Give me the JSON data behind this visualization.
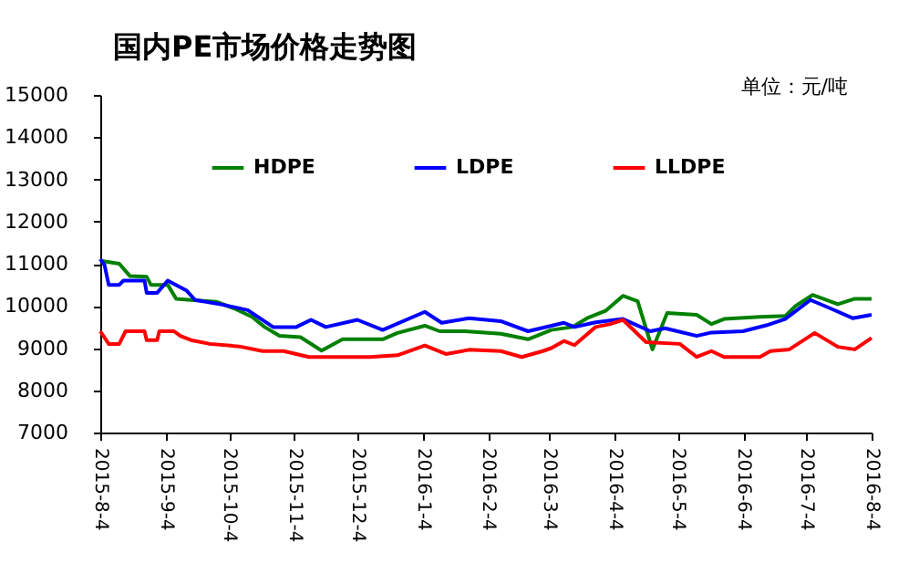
{
  "chart_data": {
    "type": "line",
    "title": "国内PE市场价格走势图",
    "annotations": [
      "单位：元/吨"
    ],
    "xlim": [
      "2015-08-04",
      "2016-08-04"
    ],
    "xticks": [
      {
        "value": "2015-08-04",
        "label": "2015-8-4"
      },
      {
        "value": "2015-09-04",
        "label": "2015-9-4"
      },
      {
        "value": "2015-10-04",
        "label": "2015-10-4"
      },
      {
        "value": "2015-11-04",
        "label": "2015-11-4"
      },
      {
        "value": "2015-12-04",
        "label": "2015-12-4"
      },
      {
        "value": "2016-01-04",
        "label": "2016-1-4"
      },
      {
        "value": "2016-02-04",
        "label": "2016-2-4"
      },
      {
        "value": "2016-03-04",
        "label": "2016-3-4"
      },
      {
        "value": "2016-04-04",
        "label": "2016-4-4"
      },
      {
        "value": "2016-05-04",
        "label": "2016-5-4"
      },
      {
        "value": "2016-06-04",
        "label": "2016-6-4"
      },
      {
        "value": "2016-07-04",
        "label": "2016-7-4"
      },
      {
        "value": "2016-08-04",
        "label": "2016-8-4"
      }
    ],
    "ylim": [
      7000,
      15000
    ],
    "yticks": [
      7000,
      8000,
      9000,
      10000,
      11000,
      12000,
      13000,
      14000,
      15000
    ],
    "grid": false,
    "legend": "top",
    "marker": "none",
    "line_style": "solid",
    "series": [
      {
        "name": "HDPE",
        "color": "#008000",
        "x": [
          "2015-08-04",
          "2015-08-13",
          "2015-08-18",
          "2015-08-26",
          "2015-08-28",
          "2015-09-05",
          "2015-09-09",
          "2015-09-16",
          "2015-09-28",
          "2015-10-07",
          "2015-10-15",
          "2015-10-21",
          "2015-10-28",
          "2015-11-07",
          "2015-11-17",
          "2015-11-27",
          "2015-12-16",
          "2015-12-23",
          "2016-01-05",
          "2016-01-12",
          "2016-01-24",
          "2016-02-10",
          "2016-02-23",
          "2016-03-05",
          "2016-03-15",
          "2016-03-22",
          "2016-03-31",
          "2016-04-08",
          "2016-04-15",
          "2016-04-22",
          "2016-04-29",
          "2016-05-13",
          "2016-05-20",
          "2016-05-26",
          "2016-06-12",
          "2016-06-24",
          "2016-06-29",
          "2016-07-07",
          "2016-07-19",
          "2016-07-27",
          "2016-08-04"
        ],
        "values": [
          11070,
          11000,
          10710,
          10690,
          10500,
          10500,
          10170,
          10140,
          10100,
          9930,
          9740,
          9500,
          9290,
          9260,
          8940,
          9210,
          9210,
          9360,
          9530,
          9400,
          9400,
          9340,
          9210,
          9430,
          9500,
          9710,
          9890,
          10240,
          10110,
          8970,
          9830,
          9790,
          9570,
          9690,
          9740,
          9760,
          10000,
          10260,
          10040,
          10170,
          10170
        ]
      },
      {
        "name": "LDPE",
        "color": "#0000ff",
        "x": [
          "2015-08-04",
          "2015-08-06",
          "2015-08-08",
          "2015-08-13",
          "2015-08-15",
          "2015-08-25",
          "2015-08-26",
          "2015-08-31",
          "2015-09-05",
          "2015-09-14",
          "2015-09-18",
          "2015-10-01",
          "2015-10-13",
          "2015-10-25",
          "2015-11-05",
          "2015-11-12",
          "2015-11-19",
          "2015-12-04",
          "2015-12-16",
          "2016-01-05",
          "2016-01-13",
          "2016-01-26",
          "2016-02-10",
          "2016-02-23",
          "2016-03-11",
          "2016-03-16",
          "2016-03-26",
          "2016-04-08",
          "2016-04-21",
          "2016-04-28",
          "2016-05-13",
          "2016-05-20",
          "2016-06-04",
          "2016-06-15",
          "2016-06-24",
          "2016-07-06",
          "2016-07-16",
          "2016-07-26",
          "2016-08-04"
        ],
        "values": [
          11110,
          10970,
          10500,
          10500,
          10600,
          10600,
          10310,
          10310,
          10600,
          10360,
          10140,
          10030,
          9900,
          9500,
          9500,
          9670,
          9500,
          9670,
          9430,
          9860,
          9600,
          9710,
          9640,
          9400,
          9600,
          9500,
          9610,
          9690,
          9400,
          9470,
          9290,
          9370,
          9400,
          9540,
          9690,
          10140,
          9930,
          9710,
          9790
        ]
      },
      {
        "name": "LLDPE",
        "color": "#ff0000",
        "x": [
          "2015-08-04",
          "2015-08-08",
          "2015-08-13",
          "2015-08-16",
          "2015-08-25",
          "2015-08-26",
          "2015-08-31",
          "2015-09-01",
          "2015-09-08",
          "2015-09-11",
          "2015-09-16",
          "2015-09-25",
          "2015-10-09",
          "2015-10-20",
          "2015-10-30",
          "2015-11-11",
          "2015-11-22",
          "2015-12-10",
          "2015-12-23",
          "2016-01-05",
          "2016-01-15",
          "2016-01-26",
          "2016-02-10",
          "2016-02-20",
          "2016-03-01",
          "2016-03-05",
          "2016-03-11",
          "2016-03-16",
          "2016-03-26",
          "2016-04-02",
          "2016-04-08",
          "2016-04-19",
          "2016-05-05",
          "2016-05-13",
          "2016-05-20",
          "2016-05-26",
          "2016-06-12",
          "2016-06-17",
          "2016-06-26",
          "2016-07-08",
          "2016-07-19",
          "2016-07-27",
          "2016-08-04"
        ],
        "values": [
          9400,
          9100,
          9100,
          9400,
          9400,
          9190,
          9190,
          9400,
          9400,
          9290,
          9190,
          9100,
          9040,
          8930,
          8930,
          8790,
          8790,
          8790,
          8830,
          9060,
          8860,
          8960,
          8930,
          8790,
          8930,
          9000,
          9170,
          9070,
          9500,
          9570,
          9670,
          9140,
          9100,
          8790,
          8930,
          8790,
          8790,
          8930,
          8970,
          9360,
          9030,
          8970,
          9240
        ]
      }
    ]
  }
}
